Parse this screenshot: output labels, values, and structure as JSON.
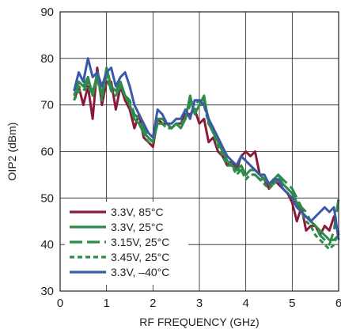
{
  "chart_data": {
    "type": "line",
    "xlabel": "RF FREQUENCY (GHz)",
    "ylabel": "OIP2 (dBm)",
    "xlim": [
      0,
      6
    ],
    "ylim": [
      30,
      90
    ],
    "xticks": [
      "0",
      "1",
      "2",
      "3",
      "4",
      "5",
      "6"
    ],
    "yticks": [
      "30",
      "40",
      "50",
      "60",
      "70",
      "80",
      "90"
    ],
    "grid": true,
    "legend_position": "bottom-left",
    "series": [
      {
        "name": "3.3V, 85°C",
        "color": "#8b1a3a",
        "dash": "solid",
        "x": [
          0.3,
          0.4,
          0.5,
          0.6,
          0.7,
          0.8,
          0.9,
          1.0,
          1.1,
          1.2,
          1.3,
          1.4,
          1.5,
          1.6,
          1.7,
          1.8,
          1.9,
          2.0,
          2.1,
          2.2,
          2.3,
          2.4,
          2.5,
          2.6,
          2.7,
          2.8,
          2.9,
          3.0,
          3.1,
          3.2,
          3.3,
          3.4,
          3.5,
          3.6,
          3.7,
          3.8,
          3.9,
          4.0,
          4.1,
          4.2,
          4.3,
          4.4,
          4.5,
          4.6,
          4.7,
          4.8,
          4.9,
          5.0,
          5.1,
          5.2,
          5.3,
          5.4,
          5.5,
          5.6,
          5.7,
          5.8,
          5.9,
          6.0
        ],
        "y": [
          71,
          74,
          70,
          74,
          67,
          78,
          70,
          75,
          75,
          69,
          74,
          71,
          69,
          65,
          68,
          63,
          62,
          61,
          67,
          66,
          66,
          65,
          66,
          66,
          68,
          68,
          69,
          66,
          67,
          62,
          63,
          60,
          59,
          57,
          58,
          56,
          59,
          60,
          59,
          60,
          55,
          54,
          52,
          54,
          53,
          52,
          51,
          49,
          45,
          48,
          43,
          44,
          44,
          42,
          44,
          43,
          46,
          42
        ]
      },
      {
        "name": "3.3V, 25°C",
        "color": "#2e8b4a",
        "dash": "solid",
        "x": [
          0.3,
          0.4,
          0.5,
          0.6,
          0.7,
          0.8,
          0.9,
          1.0,
          1.1,
          1.2,
          1.3,
          1.4,
          1.5,
          1.6,
          1.7,
          1.8,
          1.9,
          2.0,
          2.1,
          2.2,
          2.3,
          2.4,
          2.5,
          2.6,
          2.7,
          2.8,
          2.9,
          3.0,
          3.1,
          3.2,
          3.3,
          3.4,
          3.5,
          3.6,
          3.7,
          3.8,
          3.9,
          4.0,
          4.1,
          4.2,
          4.3,
          4.4,
          4.5,
          4.6,
          4.7,
          4.8,
          4.9,
          5.0,
          5.1,
          5.2,
          5.3,
          5.4,
          5.5,
          5.6,
          5.7,
          5.8,
          5.9,
          6.0
        ],
        "y": [
          72,
          75,
          74,
          76,
          72,
          77,
          72,
          78,
          74,
          73,
          75,
          72,
          70,
          67,
          66,
          64,
          63,
          62,
          67,
          67,
          66,
          65,
          66,
          65,
          67,
          72,
          68,
          70,
          72,
          66,
          64,
          62,
          60,
          58,
          57,
          56,
          57,
          55,
          56,
          56,
          55,
          54,
          53,
          54,
          55,
          53,
          52,
          51,
          49,
          47,
          46,
          45,
          44,
          43,
          42,
          41,
          41,
          42
        ]
      },
      {
        "name": "3.15V, 25°C",
        "color": "#2e8b4a",
        "dash": "long-dash",
        "x": [
          0.3,
          0.4,
          0.5,
          0.6,
          0.7,
          0.8,
          0.9,
          1.0,
          1.1,
          1.2,
          1.3,
          1.4,
          1.5,
          1.6,
          1.7,
          1.8,
          1.9,
          2.0,
          2.1,
          2.2,
          2.3,
          2.4,
          2.5,
          2.6,
          2.7,
          2.8,
          2.9,
          3.0,
          3.1,
          3.2,
          3.3,
          3.4,
          3.5,
          3.6,
          3.7,
          3.8,
          3.9,
          4.0,
          4.1,
          4.2,
          4.3,
          4.4,
          4.5,
          4.6,
          4.7,
          4.8,
          4.9,
          5.0,
          5.1,
          5.2,
          5.3,
          5.4,
          5.5,
          5.6,
          5.7,
          5.8,
          5.9,
          6.0
        ],
        "y": [
          72,
          74,
          73,
          75,
          73,
          76,
          72,
          77,
          73,
          72,
          74,
          72,
          71,
          68,
          67,
          65,
          63,
          62,
          66,
          66,
          66,
          65,
          66,
          66,
          67,
          71,
          70,
          71,
          71,
          67,
          65,
          62,
          60,
          58,
          57,
          56,
          56,
          55,
          55,
          55,
          54,
          54,
          53,
          53,
          55,
          54,
          53,
          52,
          50,
          48,
          47,
          45,
          44,
          42,
          41,
          40,
          43,
          50
        ]
      },
      {
        "name": "3.45V, 25°C",
        "color": "#2e8b4a",
        "dash": "short-dash",
        "x": [
          0.3,
          0.4,
          0.5,
          0.6,
          0.7,
          0.8,
          0.9,
          1.0,
          1.1,
          1.2,
          1.3,
          1.4,
          1.5,
          1.6,
          1.7,
          1.8,
          1.9,
          2.0,
          2.1,
          2.2,
          2.3,
          2.4,
          2.5,
          2.6,
          2.7,
          2.8,
          2.9,
          3.0,
          3.1,
          3.2,
          3.3,
          3.4,
          3.5,
          3.6,
          3.7,
          3.8,
          3.9,
          4.0,
          4.1,
          4.2,
          4.3,
          4.4,
          4.5,
          4.6,
          4.7,
          4.8,
          4.9,
          5.0,
          5.1,
          5.2,
          5.3,
          5.4,
          5.5,
          5.6,
          5.7,
          5.8,
          5.9,
          6.0
        ],
        "y": [
          71,
          73,
          73,
          74,
          72,
          76,
          71,
          76,
          73,
          72,
          74,
          72,
          70,
          67,
          66,
          64,
          62,
          62,
          66,
          66,
          65,
          65,
          66,
          66,
          67,
          70,
          69,
          70,
          70,
          66,
          64,
          61,
          59,
          57,
          57,
          55,
          56,
          54,
          55,
          55,
          54,
          53,
          52,
          53,
          54,
          53,
          52,
          51,
          49,
          47,
          45,
          44,
          42,
          41,
          40,
          39,
          40,
          43
        ]
      },
      {
        "name": "3.3V, –40°C",
        "color": "#3a5aa8",
        "dash": "solid",
        "x": [
          0.3,
          0.4,
          0.5,
          0.6,
          0.7,
          0.8,
          0.9,
          1.0,
          1.1,
          1.2,
          1.3,
          1.4,
          1.5,
          1.6,
          1.7,
          1.8,
          1.9,
          2.0,
          2.1,
          2.2,
          2.3,
          2.4,
          2.5,
          2.6,
          2.7,
          2.8,
          2.9,
          3.0,
          3.1,
          3.2,
          3.3,
          3.4,
          3.5,
          3.6,
          3.7,
          3.8,
          3.9,
          4.0,
          4.1,
          4.2,
          4.3,
          4.4,
          4.5,
          4.6,
          4.7,
          4.8,
          4.9,
          5.0,
          5.1,
          5.2,
          5.3,
          5.4,
          5.5,
          5.6,
          5.7,
          5.8,
          5.9,
          6.0
        ],
        "y": [
          73,
          77,
          75,
          80,
          76,
          77,
          74,
          77,
          78,
          74,
          76,
          77,
          74,
          70,
          68,
          66,
          64,
          63,
          69,
          68,
          66,
          66,
          67,
          67,
          69,
          67,
          71,
          71,
          70,
          67,
          65,
          63,
          61,
          59,
          58,
          57,
          59,
          58,
          57,
          56,
          55,
          55,
          53,
          54,
          54,
          52,
          51,
          50,
          48,
          47,
          46,
          45,
          46,
          47,
          48,
          47,
          48,
          41
        ]
      }
    ]
  }
}
